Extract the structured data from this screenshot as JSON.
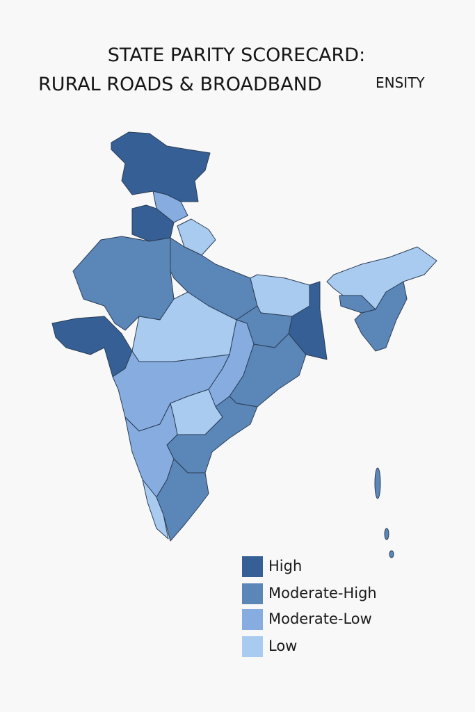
{
  "title": {
    "line1": "STATE PARITY SCORECARD:",
    "line2": "RURAL ROADS & BROADBAND",
    "line2_tail": "ENSITY"
  },
  "legend": [
    {
      "label": "High",
      "color": "#355f95"
    },
    {
      "label": "Moderate-High",
      "color": "#5b86b8"
    },
    {
      "label": "Moderate-Low",
      "color": "#86ace0"
    },
    {
      "label": "Low",
      "color": "#a9cbf0"
    }
  ]
}
